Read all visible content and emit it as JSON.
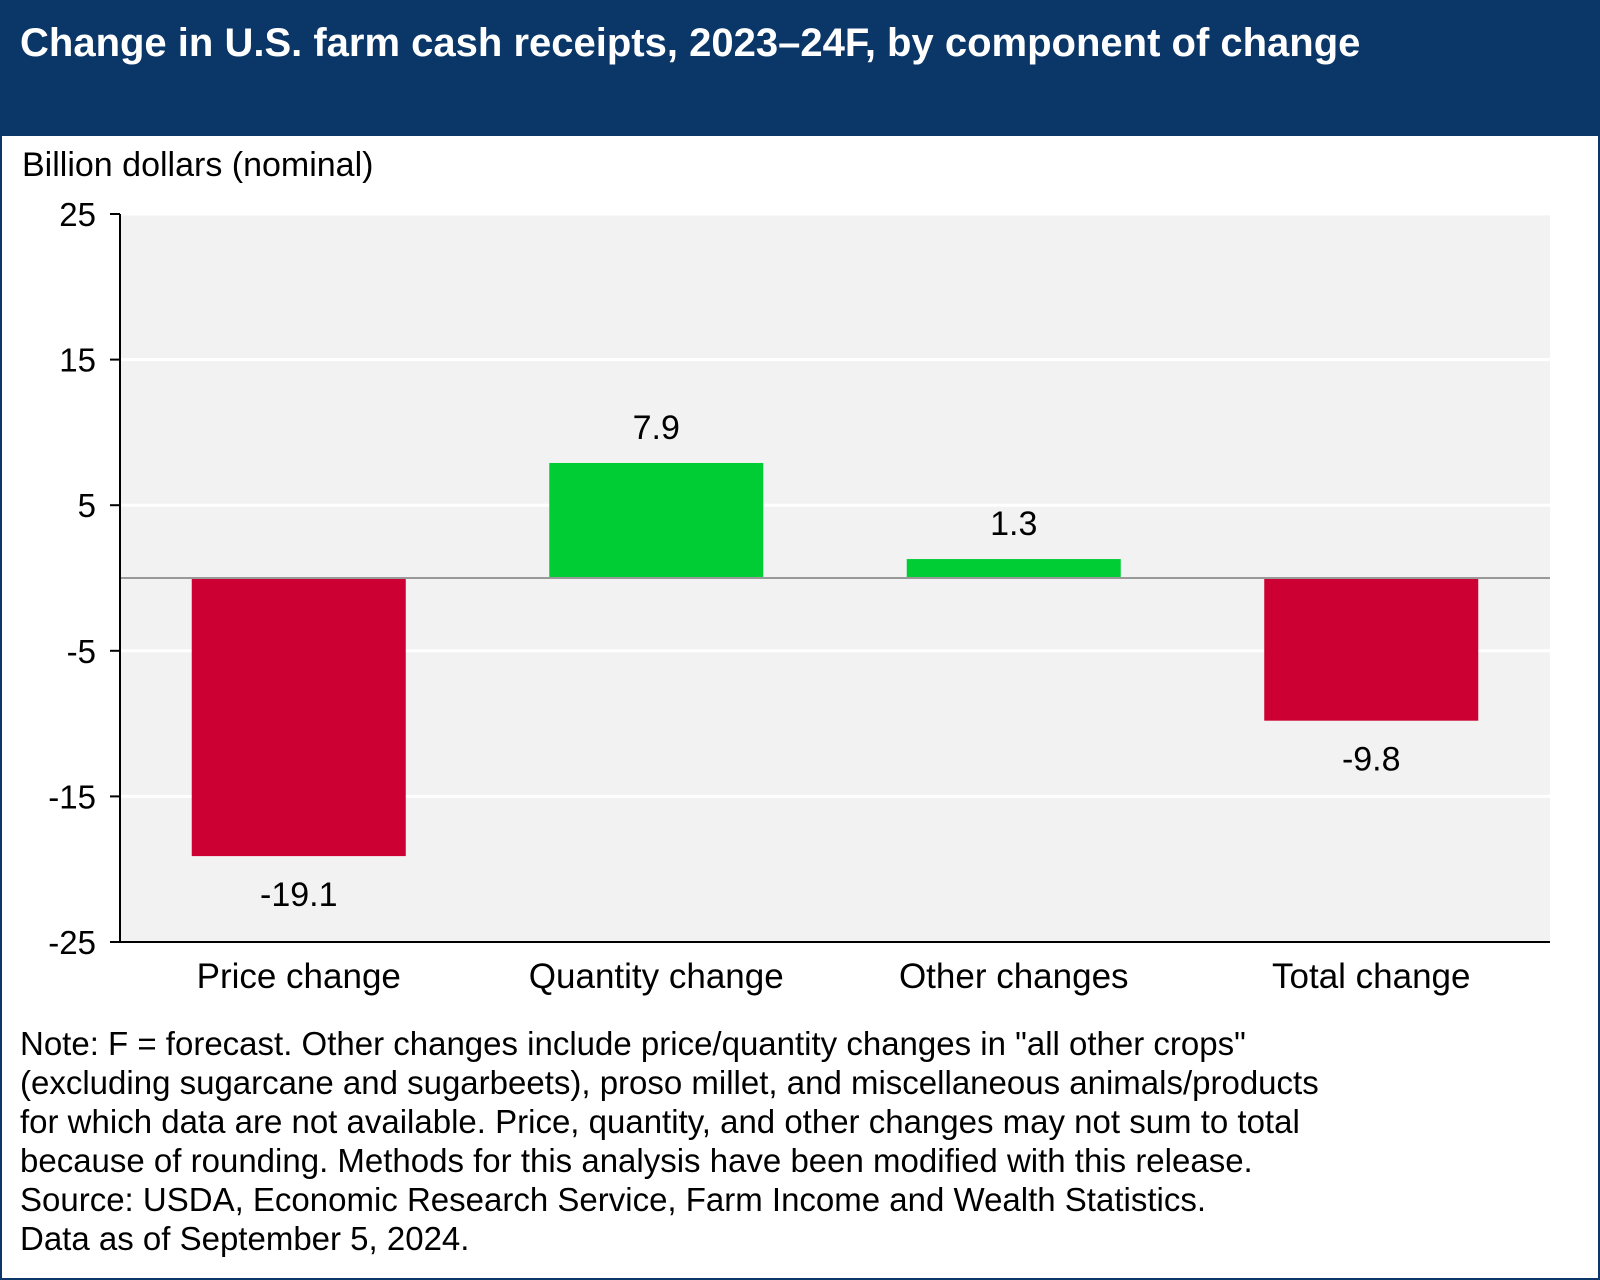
{
  "title": "Change in U.S. farm cash receipts, 2023–24F, by component of change",
  "unit_label": "Billion dollars (nominal)",
  "notes": [
    "Note: F = forecast. Other changes include price/quantity changes in \"all other crops\"",
    "(excluding sugarcane and sugarbeets), proso millet, and miscellaneous animals/products",
    "for which data are not available. Price, quantity, and other changes may not sum to total",
    "because of rounding. Methods for this analysis have been modified with this release.",
    "Source: USDA, Economic Research Service, Farm Income and Wealth Statistics.",
    "Data as of September 5, 2024."
  ],
  "colors": {
    "header": "#0b3668",
    "positive": "#00cc33",
    "negative": "#cc0033",
    "plot_background": "#f2f2f2"
  },
  "chart_data": {
    "type": "bar",
    "categories": [
      "Price change",
      "Quantity change",
      "Other changes",
      "Total change"
    ],
    "values": [
      -19.1,
      7.9,
      1.3,
      -9.8
    ],
    "data_labels": [
      "-19.1",
      "7.9",
      "1.3",
      "-9.8"
    ],
    "title": "Change in U.S. farm cash receipts, 2023–24F, by component of change",
    "ylabel": "Billion dollars (nominal)",
    "xlabel": "",
    "ylim": [
      -25,
      25
    ],
    "yticks": [
      25,
      15,
      5,
      -5,
      -15,
      -25
    ],
    "grid": true
  }
}
